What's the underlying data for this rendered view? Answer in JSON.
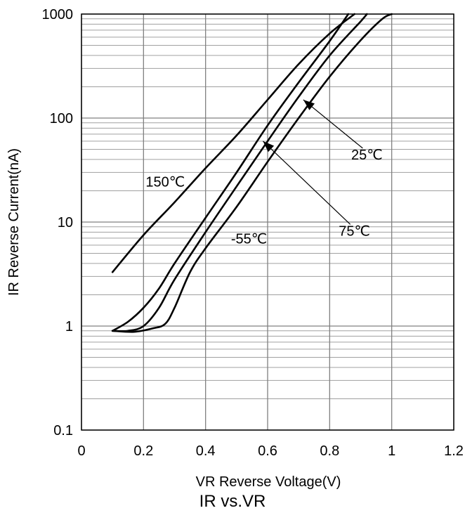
{
  "chart_data": {
    "type": "line",
    "title": "IR vs.VR",
    "xlabel": "VR  Reverse Voltage(V)",
    "ylabel": "IR Reverse Current(nA)",
    "xlim": [
      0,
      1.2
    ],
    "ylim": [
      0.1,
      1000
    ],
    "yscale": "log",
    "grid": true,
    "x_ticks": [
      "0",
      "0.2",
      "0.4",
      "0.6",
      "0.8",
      "1",
      "1.2"
    ],
    "y_ticks": [
      "0.1",
      "1",
      "10",
      "100",
      "1000"
    ],
    "x_tick_values": [
      0,
      0.2,
      0.4,
      0.6,
      0.8,
      1.0,
      1.2
    ],
    "y_tick_values": [
      0.1,
      1,
      10,
      100,
      1000
    ],
    "series": [
      {
        "name": "150℃",
        "points": [
          [
            0.1,
            3.3
          ],
          [
            0.2,
            7.5
          ],
          [
            0.3,
            15.5
          ],
          [
            0.4,
            33
          ],
          [
            0.5,
            68
          ],
          [
            0.6,
            150
          ],
          [
            0.7,
            330
          ],
          [
            0.8,
            650
          ],
          [
            0.88,
            1000
          ]
        ]
      },
      {
        "name": "75℃",
        "points": [
          [
            0.1,
            0.9
          ],
          [
            0.15,
            1.1
          ],
          [
            0.2,
            1.5
          ],
          [
            0.25,
            2.3
          ],
          [
            0.3,
            4.0
          ],
          [
            0.4,
            11
          ],
          [
            0.5,
            30
          ],
          [
            0.6,
            85
          ],
          [
            0.7,
            220
          ],
          [
            0.8,
            550
          ],
          [
            0.86,
            1000
          ]
        ]
      },
      {
        "name": "25℃",
        "points": [
          [
            0.1,
            0.9
          ],
          [
            0.15,
            0.9
          ],
          [
            0.2,
            1.0
          ],
          [
            0.25,
            1.5
          ],
          [
            0.3,
            2.8
          ],
          [
            0.4,
            8.0
          ],
          [
            0.5,
            22
          ],
          [
            0.6,
            60
          ],
          [
            0.7,
            160
          ],
          [
            0.8,
            400
          ],
          [
            0.9,
            850
          ],
          [
            0.92,
            1000
          ]
        ]
      },
      {
        "name": "-55℃",
        "points": [
          [
            0.1,
            0.9
          ],
          [
            0.17,
            0.88
          ],
          [
            0.23,
            0.95
          ],
          [
            0.27,
            1.05
          ],
          [
            0.3,
            1.5
          ],
          [
            0.35,
            3.3
          ],
          [
            0.4,
            5.6
          ],
          [
            0.5,
            14
          ],
          [
            0.6,
            38
          ],
          [
            0.7,
            100
          ],
          [
            0.8,
            250
          ],
          [
            0.9,
            560
          ],
          [
            0.97,
            900
          ],
          [
            1.0,
            1000
          ]
        ]
      }
    ],
    "annotations": [
      {
        "text": "150℃",
        "x": 0.27,
        "y": 22
      },
      {
        "text": "-55℃",
        "x": 0.54,
        "y": 6.2
      },
      {
        "text": "25℃",
        "x": 0.92,
        "y": 40,
        "arrow_to": [
          0.715,
          150
        ]
      },
      {
        "text": "75℃",
        "x": 0.88,
        "y": 7.4,
        "arrow_to": [
          0.585,
          60
        ]
      }
    ]
  }
}
